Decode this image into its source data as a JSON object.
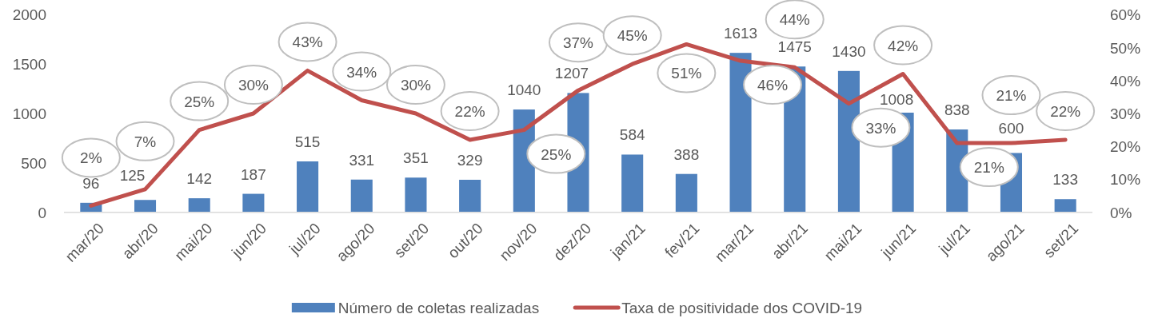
{
  "chart_data": {
    "type": "bar",
    "categories": [
      "mar/20",
      "abr/20",
      "mai/20",
      "jun/20",
      "jul/20",
      "ago/20",
      "set/20",
      "out/20",
      "nov/20",
      "dez/20",
      "jan/21",
      "fev/21",
      "mar/21",
      "abr/21",
      "mai/21",
      "jun/21",
      "jul/21",
      "ago/21",
      "set/21"
    ],
    "series": [
      {
        "name": "Número de coletas realizadas",
        "color": "#4f81bd",
        "values": [
          96,
          125,
          142,
          187,
          515,
          331,
          351,
          329,
          1040,
          1207,
          584,
          388,
          1613,
          1475,
          1430,
          1008,
          838,
          600,
          133
        ],
        "value_labels": [
          "96",
          "125",
          "142",
          "187",
          "515",
          "331",
          "351",
          "329",
          "1040",
          "1207",
          "584",
          "388",
          "1613",
          "1475",
          "1430",
          "1008",
          "838",
          "600",
          "133"
        ]
      },
      {
        "name": "Taxa de positividade dos COVID-19",
        "type": "line",
        "axis": "y2",
        "color": "#c0504d",
        "values": [
          2,
          7,
          25,
          30,
          43,
          34,
          30,
          22,
          25,
          37,
          45,
          51,
          46,
          44,
          33,
          42,
          21,
          21,
          22
        ],
        "value_labels": [
          "2%",
          "7%",
          "25%",
          "30%",
          "43%",
          "34%",
          "30%",
          "22%",
          "25%",
          "37%",
          "45%",
          "51%",
          "46%",
          "44%",
          "33%",
          "42%",
          "21%",
          "21%",
          "22%"
        ]
      }
    ],
    "ylim": [
      0,
      2000
    ],
    "yticks": [
      0,
      500,
      1000,
      1500,
      2000
    ],
    "y2lim": [
      0,
      60
    ],
    "y2ticks": [
      {
        "value": 0,
        "label": "0%"
      },
      {
        "value": 10,
        "label": "10%"
      },
      {
        "value": 20,
        "label": "20%"
      },
      {
        "value": 30,
        "label": "30%"
      },
      {
        "value": 40,
        "label": "40%"
      },
      {
        "value": 50,
        "label": "50%"
      },
      {
        "value": 60,
        "label": "60%"
      }
    ],
    "legend": "bottom"
  }
}
